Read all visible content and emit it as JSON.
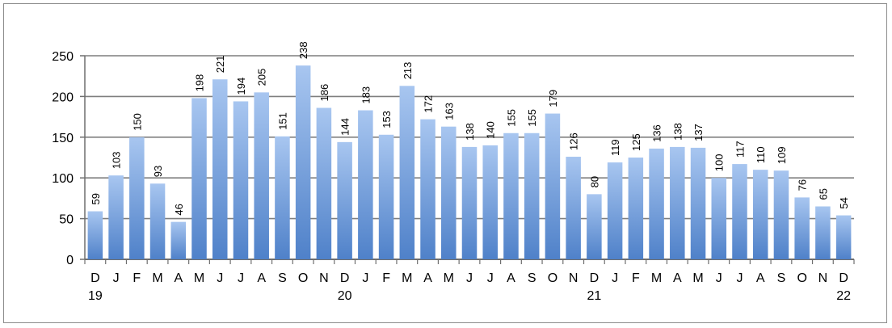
{
  "chart_data": {
    "type": "bar",
    "categories": [
      "D",
      "J",
      "F",
      "M",
      "A",
      "M",
      "J",
      "J",
      "A",
      "S",
      "O",
      "N",
      "D",
      "J",
      "F",
      "M",
      "A",
      "M",
      "J",
      "J",
      "A",
      "S",
      "O",
      "N",
      "D",
      "J",
      "F",
      "M",
      "A",
      "M",
      "J",
      "J",
      "A",
      "S",
      "O",
      "N",
      "D"
    ],
    "year_labels": [
      {
        "index": 0,
        "label": "19"
      },
      {
        "index": 12,
        "label": "20"
      },
      {
        "index": 24,
        "label": "21"
      },
      {
        "index": 36,
        "label": "22"
      }
    ],
    "values": [
      59,
      103,
      150,
      93,
      46,
      198,
      221,
      194,
      205,
      151,
      238,
      186,
      144,
      183,
      153,
      213,
      172,
      163,
      138,
      140,
      155,
      155,
      179,
      126,
      80,
      119,
      125,
      136,
      138,
      137,
      100,
      117,
      110,
      109,
      76,
      65,
      54
    ],
    "ylim": [
      0,
      250
    ],
    "yticks": [
      0,
      50,
      100,
      150,
      200,
      250
    ],
    "grid": true,
    "bar_color_top": "#a8c6f0",
    "bar_color_bottom": "#4f81c9",
    "grid_color": "#7f7f7f"
  }
}
